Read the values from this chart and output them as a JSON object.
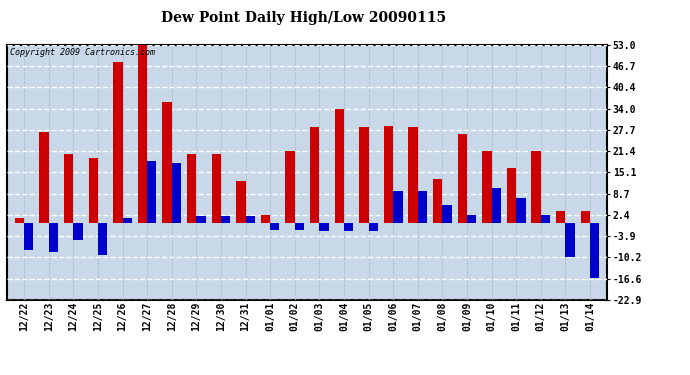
{
  "title": "Dew Point Daily High/Low 20090115",
  "copyright": "Copyright 2009 Cartronics.com",
  "dates": [
    "12/22",
    "12/23",
    "12/24",
    "12/25",
    "12/26",
    "12/27",
    "12/28",
    "12/29",
    "12/30",
    "12/31",
    "01/01",
    "01/02",
    "01/03",
    "01/04",
    "01/05",
    "01/06",
    "01/07",
    "01/08",
    "01/09",
    "01/10",
    "01/11",
    "01/12",
    "01/13",
    "01/14"
  ],
  "highs": [
    1.5,
    27.0,
    20.5,
    19.5,
    48.0,
    53.0,
    36.0,
    20.5,
    20.5,
    12.5,
    2.4,
    21.5,
    28.5,
    34.0,
    28.5,
    29.0,
    28.5,
    13.0,
    26.5,
    21.5,
    16.5,
    21.5,
    3.5,
    3.5
  ],
  "lows": [
    -8.0,
    -8.5,
    -5.0,
    -9.5,
    1.5,
    18.5,
    18.0,
    2.0,
    2.0,
    2.0,
    -2.0,
    -2.0,
    -2.5,
    -2.5,
    -2.5,
    9.5,
    9.5,
    5.5,
    2.5,
    10.5,
    7.5,
    2.5,
    -10.0,
    -16.5
  ],
  "high_color": "#cc0000",
  "low_color": "#0000cc",
  "bg_color": "#ffffff",
  "plot_bg_color": "#c8d8e8",
  "grid_color_h": "#ffffff",
  "grid_color_v": "#aabbcc",
  "yticks": [
    -22.9,
    -16.6,
    -10.2,
    -3.9,
    2.4,
    8.7,
    15.1,
    21.4,
    27.7,
    34.0,
    40.4,
    46.7,
    53.0
  ],
  "ylim": [
    -22.9,
    53.0
  ],
  "bar_width": 0.38,
  "title_fontsize": 10,
  "tick_fontsize": 7,
  "copyright_fontsize": 6
}
